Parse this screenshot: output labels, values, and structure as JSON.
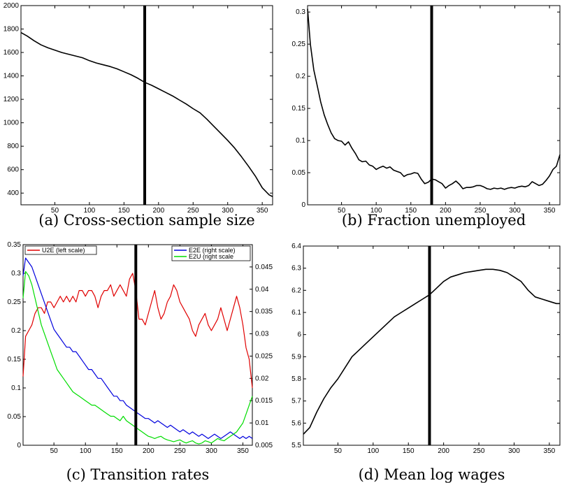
{
  "chart_data": [
    {
      "id": "a",
      "type": "line",
      "caption": "(a) Cross-section sample size",
      "xlim": [
        1,
        365
      ],
      "ylim": [
        300,
        2000
      ],
      "xticks": [
        50,
        100,
        150,
        200,
        250,
        300,
        350
      ],
      "yticks": [
        400,
        600,
        800,
        1000,
        1200,
        1400,
        1600,
        1800,
        2000
      ],
      "vline_x": 180,
      "series": [
        {
          "color": "#000000",
          "axis": "left",
          "x": [
            1,
            10,
            20,
            30,
            40,
            50,
            60,
            70,
            80,
            90,
            100,
            110,
            120,
            130,
            140,
            150,
            160,
            170,
            180,
            190,
            200,
            210,
            220,
            230,
            240,
            250,
            260,
            270,
            280,
            290,
            300,
            310,
            320,
            330,
            340,
            350,
            360,
            365
          ],
          "y": [
            1770,
            1740,
            1700,
            1665,
            1640,
            1620,
            1600,
            1585,
            1570,
            1555,
            1530,
            1510,
            1495,
            1480,
            1460,
            1435,
            1410,
            1380,
            1345,
            1320,
            1290,
            1260,
            1230,
            1195,
            1160,
            1120,
            1085,
            1030,
            970,
            910,
            850,
            785,
            710,
            630,
            545,
            445,
            385,
            370
          ]
        }
      ]
    },
    {
      "id": "b",
      "type": "line",
      "caption": "(b) Fraction unemployed",
      "xlim": [
        1,
        365
      ],
      "ylim": [
        0,
        0.31
      ],
      "xticks": [
        50,
        100,
        150,
        200,
        250,
        300,
        350
      ],
      "yticks": [
        0,
        0.05,
        0.1,
        0.15,
        0.2,
        0.25,
        0.3
      ],
      "vline_x": 180,
      "series": [
        {
          "color": "#000000",
          "axis": "left",
          "x": [
            1,
            5,
            10,
            15,
            20,
            25,
            30,
            35,
            40,
            45,
            50,
            55,
            60,
            65,
            70,
            75,
            80,
            85,
            90,
            95,
            100,
            105,
            110,
            115,
            120,
            125,
            130,
            135,
            140,
            145,
            150,
            155,
            160,
            165,
            170,
            175,
            180,
            185,
            190,
            195,
            200,
            205,
            210,
            215,
            220,
            225,
            230,
            235,
            240,
            245,
            250,
            255,
            260,
            265,
            270,
            275,
            280,
            285,
            290,
            295,
            300,
            305,
            310,
            315,
            320,
            325,
            330,
            335,
            340,
            345,
            350,
            355,
            360,
            365
          ],
          "y": [
            0.305,
            0.25,
            0.21,
            0.185,
            0.16,
            0.14,
            0.125,
            0.112,
            0.103,
            0.1,
            0.099,
            0.093,
            0.098,
            0.088,
            0.08,
            0.07,
            0.067,
            0.068,
            0.062,
            0.06,
            0.055,
            0.058,
            0.06,
            0.057,
            0.059,
            0.054,
            0.052,
            0.05,
            0.044,
            0.047,
            0.048,
            0.05,
            0.049,
            0.04,
            0.033,
            0.035,
            0.04,
            0.039,
            0.036,
            0.033,
            0.026,
            0.03,
            0.033,
            0.037,
            0.032,
            0.025,
            0.027,
            0.027,
            0.028,
            0.03,
            0.03,
            0.028,
            0.025,
            0.024,
            0.026,
            0.025,
            0.026,
            0.024,
            0.026,
            0.027,
            0.026,
            0.028,
            0.029,
            0.028,
            0.03,
            0.036,
            0.033,
            0.03,
            0.032,
            0.038,
            0.045,
            0.055,
            0.06,
            0.078
          ]
        }
      ]
    },
    {
      "id": "c",
      "type": "line",
      "caption": "(c) Transition rates",
      "xlim": [
        1,
        365
      ],
      "ylim": [
        0,
        0.35
      ],
      "y2lim": [
        0.005,
        0.05
      ],
      "xticks": [
        50,
        100,
        150,
        200,
        250,
        300,
        350
      ],
      "yticks": [
        0,
        0.05,
        0.1,
        0.15,
        0.2,
        0.25,
        0.3,
        0.35
      ],
      "y2ticks": [
        0.005,
        0.01,
        0.015,
        0.02,
        0.025,
        0.03,
        0.035,
        0.04,
        0.045
      ],
      "vline_x": 180,
      "legend_left": {
        "position": "top-left",
        "entries": [
          {
            "label": "U2E (left scale)",
            "color": "#e00000"
          }
        ]
      },
      "legend_right": {
        "position": "top-right",
        "entries": [
          {
            "label": "E2E (right scale)",
            "color": "#0000dd"
          },
          {
            "label": "E2U (right scale",
            "color": "#00dd00"
          }
        ]
      },
      "series": [
        {
          "name": "U2E (left scale)",
          "color": "#e00000",
          "axis": "left",
          "x": [
            1,
            5,
            10,
            15,
            20,
            25,
            30,
            35,
            40,
            45,
            50,
            55,
            60,
            65,
            70,
            75,
            80,
            85,
            90,
            95,
            100,
            105,
            110,
            115,
            120,
            125,
            130,
            135,
            140,
            145,
            150,
            155,
            160,
            165,
            170,
            175,
            180,
            185,
            190,
            195,
            200,
            205,
            210,
            215,
            220,
            225,
            230,
            235,
            240,
            245,
            250,
            255,
            260,
            265,
            270,
            275,
            280,
            285,
            290,
            295,
            300,
            305,
            310,
            315,
            320,
            325,
            330,
            335,
            340,
            345,
            350,
            355,
            360,
            365
          ],
          "y": [
            0.12,
            0.19,
            0.2,
            0.21,
            0.23,
            0.24,
            0.24,
            0.23,
            0.25,
            0.25,
            0.24,
            0.25,
            0.26,
            0.25,
            0.26,
            0.25,
            0.26,
            0.25,
            0.27,
            0.27,
            0.26,
            0.27,
            0.27,
            0.26,
            0.24,
            0.26,
            0.27,
            0.27,
            0.28,
            0.26,
            0.27,
            0.28,
            0.27,
            0.26,
            0.29,
            0.3,
            0.27,
            0.22,
            0.22,
            0.21,
            0.23,
            0.25,
            0.27,
            0.24,
            0.22,
            0.23,
            0.25,
            0.26,
            0.28,
            0.27,
            0.25,
            0.24,
            0.23,
            0.22,
            0.2,
            0.19,
            0.21,
            0.22,
            0.23,
            0.21,
            0.2,
            0.21,
            0.22,
            0.24,
            0.22,
            0.2,
            0.22,
            0.24,
            0.26,
            0.24,
            0.21,
            0.17,
            0.15,
            0.1
          ]
        },
        {
          "name": "E2E (right scale)",
          "color": "#0000dd",
          "axis": "right",
          "x": [
            1,
            5,
            10,
            15,
            20,
            25,
            30,
            35,
            40,
            45,
            50,
            55,
            60,
            65,
            70,
            75,
            80,
            85,
            90,
            95,
            100,
            105,
            110,
            115,
            120,
            125,
            130,
            135,
            140,
            145,
            150,
            155,
            160,
            165,
            170,
            175,
            180,
            185,
            190,
            195,
            200,
            205,
            210,
            215,
            220,
            225,
            230,
            235,
            240,
            245,
            250,
            255,
            260,
            265,
            270,
            275,
            280,
            285,
            290,
            295,
            300,
            305,
            310,
            315,
            320,
            325,
            330,
            335,
            340,
            345,
            350,
            355,
            360,
            365
          ],
          "y": [
            0.043,
            0.047,
            0.046,
            0.045,
            0.043,
            0.041,
            0.039,
            0.037,
            0.035,
            0.033,
            0.031,
            0.03,
            0.029,
            0.028,
            0.027,
            0.027,
            0.026,
            0.026,
            0.025,
            0.024,
            0.023,
            0.022,
            0.022,
            0.021,
            0.02,
            0.02,
            0.019,
            0.018,
            0.017,
            0.016,
            0.016,
            0.015,
            0.015,
            0.014,
            0.0135,
            0.013,
            0.0125,
            0.012,
            0.0115,
            0.011,
            0.011,
            0.0105,
            0.01,
            0.0105,
            0.01,
            0.0095,
            0.009,
            0.0095,
            0.009,
            0.0085,
            0.008,
            0.0085,
            0.008,
            0.0075,
            0.008,
            0.0075,
            0.007,
            0.0075,
            0.007,
            0.0065,
            0.007,
            0.0075,
            0.007,
            0.0065,
            0.007,
            0.0075,
            0.008,
            0.0075,
            0.007,
            0.0065,
            0.007,
            0.0065,
            0.007,
            0.0065
          ]
        },
        {
          "name": "E2U (right scale",
          "color": "#00dd00",
          "axis": "right",
          "x": [
            1,
            5,
            10,
            15,
            20,
            25,
            30,
            35,
            40,
            45,
            50,
            55,
            60,
            65,
            70,
            75,
            80,
            85,
            90,
            95,
            100,
            105,
            110,
            115,
            120,
            125,
            130,
            135,
            140,
            145,
            150,
            155,
            160,
            165,
            170,
            175,
            180,
            185,
            190,
            195,
            200,
            205,
            210,
            215,
            220,
            225,
            230,
            235,
            240,
            245,
            250,
            255,
            260,
            265,
            270,
            275,
            280,
            285,
            290,
            295,
            300,
            305,
            310,
            315,
            320,
            325,
            330,
            335,
            340,
            345,
            350,
            355,
            360,
            365
          ],
          "y": [
            0.038,
            0.044,
            0.043,
            0.041,
            0.038,
            0.035,
            0.032,
            0.03,
            0.028,
            0.026,
            0.024,
            0.022,
            0.021,
            0.02,
            0.019,
            0.018,
            0.017,
            0.0165,
            0.016,
            0.0155,
            0.015,
            0.0145,
            0.014,
            0.014,
            0.0135,
            0.013,
            0.0125,
            0.012,
            0.0115,
            0.0115,
            0.011,
            0.0105,
            0.0115,
            0.0105,
            0.01,
            0.0095,
            0.009,
            0.0085,
            0.008,
            0.0075,
            0.007,
            0.0068,
            0.0065,
            0.0068,
            0.007,
            0.0065,
            0.0062,
            0.006,
            0.0058,
            0.006,
            0.0062,
            0.0058,
            0.0055,
            0.0058,
            0.006,
            0.0055,
            0.0053,
            0.0055,
            0.006,
            0.0058,
            0.0055,
            0.006,
            0.0065,
            0.0062,
            0.006,
            0.0065,
            0.007,
            0.0075,
            0.008,
            0.009,
            0.01,
            0.012,
            0.014,
            0.016
          ]
        }
      ]
    },
    {
      "id": "d",
      "type": "line",
      "caption": "(d) Mean log wages",
      "xlim": [
        1,
        365
      ],
      "ylim": [
        5.5,
        6.4
      ],
      "xticks": [
        50,
        100,
        150,
        200,
        250,
        300,
        350
      ],
      "yticks": [
        5.5,
        5.6,
        5.7,
        5.8,
        5.9,
        6,
        6.1,
        6.2,
        6.3,
        6.4
      ],
      "vline_x": 180,
      "series": [
        {
          "color": "#000000",
          "axis": "left",
          "x": [
            1,
            10,
            20,
            30,
            40,
            50,
            60,
            70,
            80,
            90,
            100,
            110,
            120,
            130,
            140,
            150,
            160,
            170,
            180,
            190,
            200,
            210,
            220,
            230,
            240,
            250,
            260,
            270,
            280,
            290,
            300,
            310,
            320,
            330,
            340,
            350,
            360,
            365
          ],
          "y": [
            5.55,
            5.58,
            5.65,
            5.71,
            5.76,
            5.8,
            5.85,
            5.9,
            5.93,
            5.96,
            5.99,
            6.02,
            6.05,
            6.08,
            6.1,
            6.12,
            6.14,
            6.16,
            6.18,
            6.21,
            6.24,
            6.26,
            6.27,
            6.28,
            6.285,
            6.29,
            6.295,
            6.295,
            6.29,
            6.28,
            6.26,
            6.24,
            6.2,
            6.17,
            6.16,
            6.15,
            6.14,
            6.14
          ]
        }
      ]
    }
  ]
}
